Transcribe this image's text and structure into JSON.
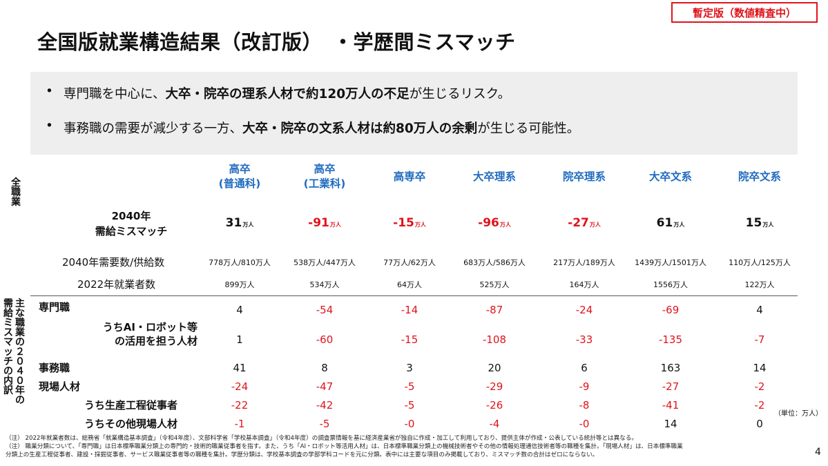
{
  "badge": "暫定版（数値精査中）",
  "title": "全国版就業構造結果（改訂版）　・学歴間ミスマッチ",
  "bullets": {
    "b1": {
      "pre": "専門職を中心に、",
      "bold": "大卒・院卒の理系人材で約120万人の不足",
      "post": "が生じるリスク。"
    },
    "b2": {
      "pre": "事務職の需要が減少する一方、",
      "bold": "大卒・院卒の文系人材は約80万人の余剰",
      "post": "が生じる可能性。"
    }
  },
  "side_labels": {
    "all": "全職業",
    "breakdown_a": "主な職業の２０４０年の",
    "breakdown_b": "需給ミスマッチの内訳"
  },
  "columns": [
    {
      "l1": "高卒",
      "l2": "(普通科)"
    },
    {
      "l1": "高卒",
      "l2": "(工業科)"
    },
    {
      "l1": "高専卒",
      "l2": ""
    },
    {
      "l1": "大卒理系",
      "l2": ""
    },
    {
      "l1": "院卒理系",
      "l2": ""
    },
    {
      "l1": "大卒文系",
      "l2": ""
    },
    {
      "l1": "院卒文系",
      "l2": ""
    }
  ],
  "rows": {
    "mismatch_label_1": "2040年",
    "mismatch_label_2": "需給ミスマッチ",
    "mismatch_unit": "万人",
    "mismatch": [
      "31",
      "-91",
      "-15",
      "-96",
      "-27",
      "61",
      "15"
    ],
    "demand_label": "2040年需要数/供給数",
    "demand": [
      "778万人/810万人",
      "538万人/447万人",
      "77万人/62万人",
      "683万人/586万人",
      "217万人/189万人",
      "1439万人/1501万人",
      "110万人/125万人"
    ],
    "emp_label": "2022年就業者数",
    "emp": [
      "899万人",
      "534万人",
      "64万人",
      "525万人",
      "164万人",
      "1556万人",
      "122万人"
    ],
    "senmon_label": "専門職",
    "senmon": [
      "4",
      "-54",
      "-14",
      "-87",
      "-24",
      "-69",
      "4"
    ],
    "ai_label_1": "うちAI・ロボット等",
    "ai_label_2": "の活用を担う人材",
    "ai": [
      "1",
      "-60",
      "-15",
      "-108",
      "-33",
      "-135",
      "-7"
    ],
    "jimu_label": "事務職",
    "jimu": [
      "41",
      "8",
      "3",
      "20",
      "6",
      "163",
      "14"
    ],
    "genba_label": "現場人材",
    "genba": [
      "-24",
      "-47",
      "-5",
      "-29",
      "-9",
      "-27",
      "-2"
    ],
    "seisan_label": "うち生産工程従事者",
    "seisan": [
      "-22",
      "-42",
      "-5",
      "-26",
      "-8",
      "-41",
      "-2"
    ],
    "other_label": "うちその他現場人材",
    "other": [
      "-1",
      "-5",
      "-0",
      "-4",
      "-0",
      "14",
      "0"
    ]
  },
  "unit_note": "（単位：万人）",
  "notes": {
    "n1": "（注） 2022年就業者数は、総務省「就業構造基本調査」（令和4年度）、文部科学省「学校基本調査」（令和4年度）の調査票情報を基に経済産業省が独自に作成・加工して利用しており、提供主体が作成・公表している統計等とは異なる。",
    "n2": "（注） 職業分類について、「専門職」は日本標準職業分類上の専門的・技術的職業従事者を指す。また、うち「AI・ロボット等活用人材」は、日本標準職業分類上の機械技術者やその他の情報処理通信技術者等の職種を集計。「現場人材」は、日本標準職業",
    "n3": "分類上の生産工程従事者、建設・採掘従事者、サービス職業従事者等の職種を集計。学歴分類は、学校基本調査の学部学科コードを元に分類。表中には主要な項目のみ掲載しており、ミスマッチ数の合計はゼロにならない。"
  },
  "page_number": "4",
  "colors": {
    "accent": "#1f6bbf",
    "negative": "#e0131b"
  }
}
